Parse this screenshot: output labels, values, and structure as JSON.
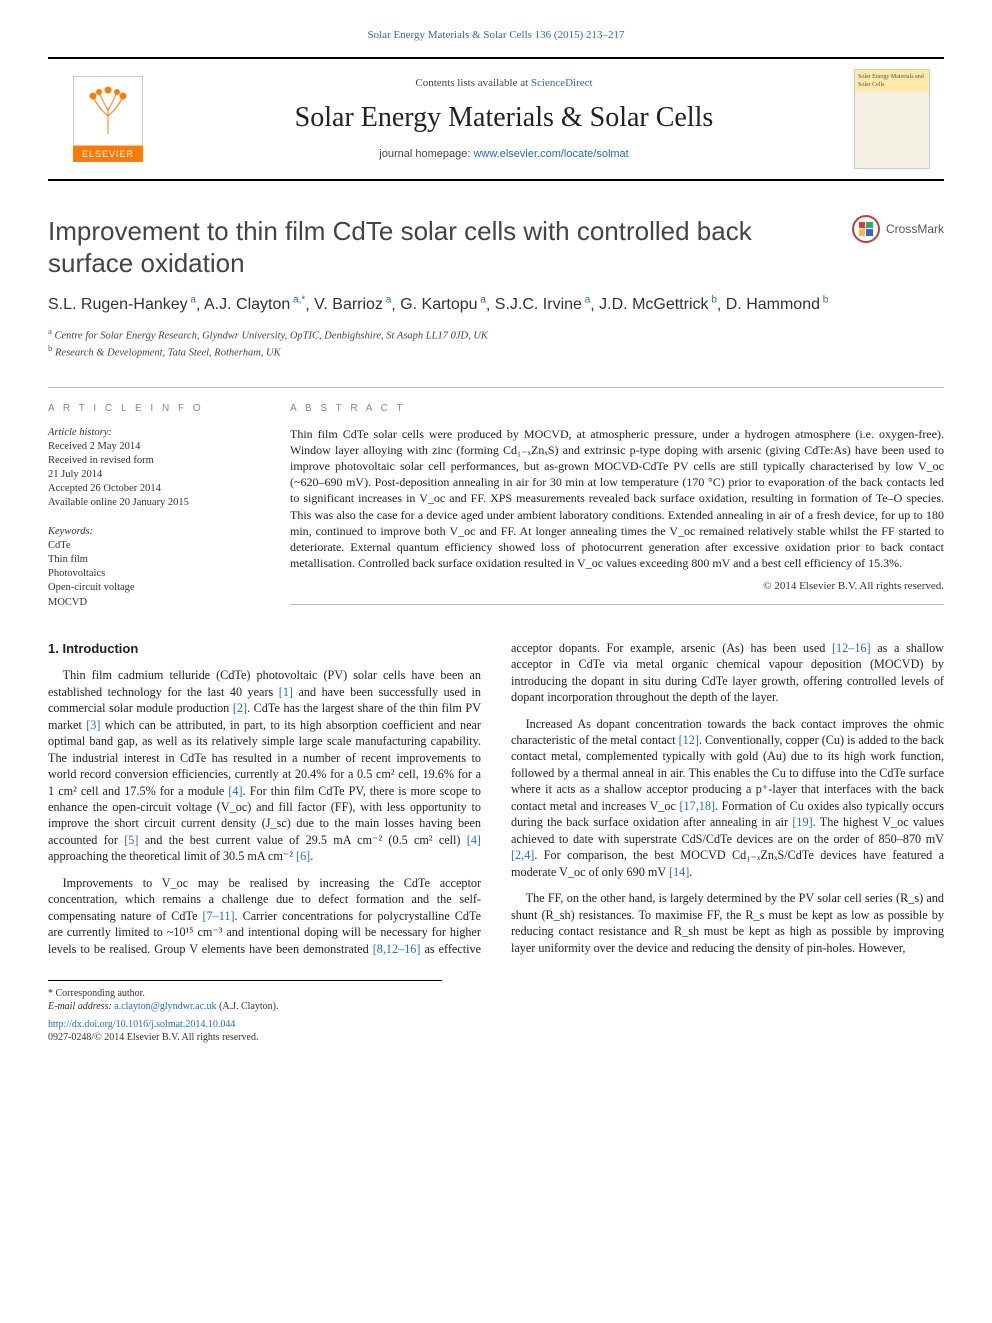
{
  "top_link": {
    "pre": "",
    "journal_name": "Solar Energy Materials & Solar Cells 136 (2015) 213–217"
  },
  "header": {
    "contents_pre": "Contents lists available at ",
    "contents_link": "ScienceDirect",
    "journal_title": "Solar Energy Materials & Solar Cells",
    "homepage_pre": "journal homepage: ",
    "homepage_link": "www.elsevier.com/locate/solmat",
    "elsevier_label": "ELSEVIER",
    "cover_caption": "Solar Energy Materials and Solar Cells"
  },
  "crossmark_label": "CrossMark",
  "title": "Improvement to thin film CdTe solar cells with controlled back surface oxidation",
  "authors_html_parts": [
    {
      "name": "S.L. Rugen-Hankey",
      "sup": "a"
    },
    {
      "name": "A.J. Clayton",
      "sup": "a,*"
    },
    {
      "name": "V. Barrioz",
      "sup": "a"
    },
    {
      "name": "G. Kartopu",
      "sup": "a"
    },
    {
      "name": "S.J.C. Irvine",
      "sup": "a"
    },
    {
      "name": "J.D. McGettrick",
      "sup": "b"
    },
    {
      "name": "D. Hammond",
      "sup": "b"
    }
  ],
  "affiliations": [
    {
      "sup": "a",
      "text": "Centre for Solar Energy Research, Glyndwr University, OpTIC, Denbighshire, St Asaph LL17 0JD, UK"
    },
    {
      "sup": "b",
      "text": "Research & Development, Tata Steel, Rotherham, UK"
    }
  ],
  "article_info": {
    "heading": "a r t i c l e   i n f o",
    "history_label": "Article history:",
    "history": [
      "Received 2 May 2014",
      "Received in revised form",
      "21 July 2014",
      "Accepted 26 October 2014",
      "Available online 20 January 2015"
    ],
    "keywords_label": "Keywords:",
    "keywords": [
      "CdTe",
      "Thin film",
      "Photovoltaics",
      "Open-circuit voltage",
      "MOCVD"
    ]
  },
  "abstract": {
    "heading": "a b s t r a c t",
    "text": "Thin film CdTe solar cells were produced by MOCVD, at atmospheric pressure, under a hydrogen atmosphere (i.e. oxygen-free). Window layer alloying with zinc (forming Cd₁₋ₓZnₓS) and extrinsic p-type doping with arsenic (giving CdTe:As) have been used to improve photovoltaic solar cell performances, but as-grown MOCVD-CdTe PV cells are still typically characterised by low V_oc (~620–690 mV). Post-deposition annealing in air for 30 min at low temperature (170 °C) prior to evaporation of the back contacts led to significant increases in V_oc and FF. XPS measurements revealed back surface oxidation, resulting in formation of Te–O species. This was also the case for a device aged under ambient laboratory conditions. Extended annealing in air of a fresh device, for up to 180 min, continued to improve both V_oc and FF. At longer annealing times the V_oc remained relatively stable whilst the FF started to deteriorate. External quantum efficiency showed loss of photocurrent generation after excessive oxidation prior to back contact metallisation. Controlled back surface oxidation resulted in V_oc values exceeding 800 mV and a best cell efficiency of 15.3%.",
    "copyright": "© 2014 Elsevier B.V. All rights reserved."
  },
  "section1": {
    "heading": "1.  Introduction",
    "p1_a": "Thin film cadmium telluride (CdTe) photovoltaic (PV) solar cells have been an established technology for the last 40 years ",
    "p1_r1": "[1]",
    "p1_b": " and have been successfully used in commercial solar module production ",
    "p1_r2": "[2]",
    "p1_c": ". CdTe has the largest share of the thin film PV market ",
    "p1_r3": "[3]",
    "p1_d": " which can be attributed, in part, to its high absorption coefficient and near optimal band gap, as well as its relatively simple large scale manufacturing capability. The industrial interest in CdTe has resulted in a number of recent improvements to world record conversion efficiencies, currently at 20.4% for a 0.5 cm² cell, 19.6% for a 1 cm² cell and 17.5% for a module ",
    "p1_r4": "[4]",
    "p1_e": ". For thin film CdTe PV, there is more scope to enhance the open-circuit voltage (V_oc) and fill factor (FF), with less opportunity to improve the short circuit current density (J_sc) due to the main losses having been accounted for ",
    "p1_r5": "[5]",
    "p1_f": " and the best current value of 29.5 mA cm⁻² (0.5 cm² cell) ",
    "p1_r4b": "[4]",
    "p1_g": " approaching the theoretical limit of 30.5 mA cm⁻² ",
    "p1_r6": "[6]",
    "p1_h": ".",
    "p2_a": "Improvements to V_oc may be realised by increasing the CdTe acceptor concentration, which remains a challenge due to defect formation and the self-compensating nature of CdTe ",
    "p2_r1": "[7–11]",
    "p2_b": ". Carrier concentrations for polycrystalline CdTe are currently limited to ~10¹⁵ cm⁻³ and intentional doping will be necessary for higher levels to be realised. Group V elements have been demonstrated ",
    "p2_r2": "[8,12–16]",
    "p2_c": " as effective acceptor dopants. For example, arsenic (As) has been used ",
    "p2_r3": "[12–16]",
    "p2_d": " as a shallow acceptor in CdTe via metal organic chemical vapour deposition (MOCVD) by introducing the dopant in situ during CdTe layer growth, offering controlled levels of dopant incorporation throughout the depth of the layer.",
    "p3_a": "Increased As dopant concentration towards the back contact improves the ohmic characteristic of the metal contact ",
    "p3_r1": "[12]",
    "p3_b": ". Conventionally, copper (Cu) is added to the back contact metal, complemented typically with gold (Au) due to its high work function, followed by a thermal anneal in air. This enables the Cu to diffuse into the CdTe surface where it acts as a shallow acceptor producing a p⁺-layer that interfaces with the back contact metal and increases V_oc ",
    "p3_r2": "[17,18]",
    "p3_c": ". Formation of Cu oxides also typically occurs during the back surface oxidation after annealing in air ",
    "p3_r3": "[19]",
    "p3_d": ". The highest V_oc values achieved to date with superstrate CdS/CdTe devices are on the order of 850–870 mV ",
    "p3_r4": "[2,4]",
    "p3_e": ". For comparison, the best MOCVD Cd₁₋ₓZnₓS/CdTe devices have featured a moderate V_oc of only 690 mV ",
    "p3_r5": "[14]",
    "p3_f": ".",
    "p4": "The FF, on the other hand, is largely determined by the PV solar cell series (R_s) and shunt (R_sh) resistances. To maximise FF, the R_s must be kept as low as possible by reducing contact resistance and R_sh must be kept as high as possible by improving layer uniformity over the device and reducing the density of pin-holes. However,"
  },
  "footer": {
    "corr": "* Corresponding author.",
    "email_label": "E-mail address: ",
    "email": "a.clayton@glyndwr.ac.uk",
    "email_post": " (A.J. Clayton).",
    "doi": "http://dx.doi.org/10.1016/j.solmat.2014.10.044",
    "issn": "0927-0248/© 2014 Elsevier B.V. All rights reserved."
  },
  "colors": {
    "link": "#2a6cb3",
    "elsevier_orange": "#ff7a00",
    "text": "#222222",
    "muted": "#888888"
  }
}
